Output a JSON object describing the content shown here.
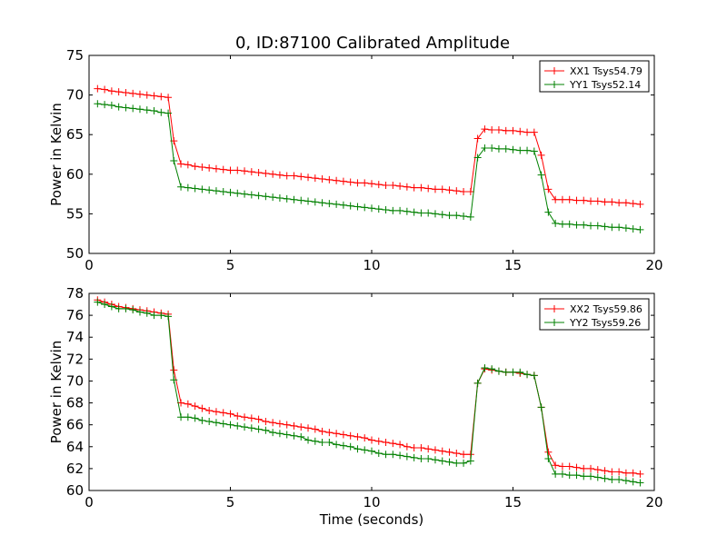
{
  "figure_title": "0, ID:87100 Calibrated Amplitude",
  "chart_data": [
    {
      "type": "line",
      "title": "0, ID:87100 Calibrated Amplitude",
      "xlabel": "",
      "ylabel": "Power in Kelvin",
      "xlim": [
        0,
        20
      ],
      "ylim": [
        50,
        75
      ],
      "xticks": [
        0,
        5,
        10,
        15,
        20
      ],
      "yticks": [
        50,
        55,
        60,
        65,
        70,
        75
      ],
      "grid": false,
      "legend_position": "top-right",
      "series": [
        {
          "name": "XX1 Tsys54.79",
          "color": "#ff0000",
          "x": [
            0.3,
            0.55,
            0.8,
            1.05,
            1.3,
            1.55,
            1.8,
            2.05,
            2.3,
            2.55,
            2.8,
            3.0,
            3.25,
            3.5,
            3.75,
            4.0,
            4.25,
            4.5,
            4.75,
            5.0,
            5.25,
            5.5,
            5.75,
            6.0,
            6.25,
            6.5,
            6.75,
            7.0,
            7.25,
            7.5,
            7.75,
            8.0,
            8.25,
            8.5,
            8.75,
            9.0,
            9.25,
            9.5,
            9.75,
            10.0,
            10.25,
            10.5,
            10.75,
            11.0,
            11.25,
            11.5,
            11.75,
            12.0,
            12.25,
            12.5,
            12.75,
            13.0,
            13.25,
            13.5,
            13.75,
            14.0,
            14.25,
            14.5,
            14.75,
            15.0,
            15.25,
            15.5,
            15.75,
            16.0,
            16.25,
            16.5,
            16.75,
            17.0,
            17.25,
            17.5,
            17.75,
            18.0,
            18.25,
            18.5,
            18.75,
            19.0,
            19.25,
            19.5
          ],
          "y": [
            70.8,
            70.7,
            70.5,
            70.4,
            70.3,
            70.2,
            70.1,
            70.0,
            69.9,
            69.8,
            69.7,
            64.2,
            61.3,
            61.2,
            61.0,
            60.9,
            60.8,
            60.7,
            60.6,
            60.5,
            60.5,
            60.4,
            60.3,
            60.2,
            60.1,
            60.0,
            59.9,
            59.8,
            59.8,
            59.7,
            59.6,
            59.5,
            59.4,
            59.3,
            59.2,
            59.1,
            59.0,
            58.9,
            58.9,
            58.8,
            58.7,
            58.6,
            58.6,
            58.5,
            58.4,
            58.3,
            58.3,
            58.2,
            58.1,
            58.1,
            58.0,
            57.9,
            57.8,
            57.8,
            64.5,
            65.7,
            65.6,
            65.6,
            65.5,
            65.5,
            65.4,
            65.3,
            65.3,
            62.4,
            58.1,
            56.8,
            56.8,
            56.8,
            56.7,
            56.7,
            56.6,
            56.6,
            56.5,
            56.5,
            56.4,
            56.4,
            56.3,
            56.2
          ],
          "x2": [
            19.5
          ],
          "note": ""
        },
        {
          "name": "YY1 Tsys52.14",
          "color": "#008000",
          "x": [
            0.3,
            0.55,
            0.8,
            1.05,
            1.3,
            1.55,
            1.8,
            2.05,
            2.3,
            2.55,
            2.8,
            3.0,
            3.25,
            3.5,
            3.75,
            4.0,
            4.25,
            4.5,
            4.75,
            5.0,
            5.25,
            5.5,
            5.75,
            6.0,
            6.25,
            6.5,
            6.75,
            7.0,
            7.25,
            7.5,
            7.75,
            8.0,
            8.25,
            8.5,
            8.75,
            9.0,
            9.25,
            9.5,
            9.75,
            10.0,
            10.25,
            10.5,
            10.75,
            11.0,
            11.25,
            11.5,
            11.75,
            12.0,
            12.25,
            12.5,
            12.75,
            13.0,
            13.25,
            13.5,
            13.75,
            14.0,
            14.25,
            14.5,
            14.75,
            15.0,
            15.25,
            15.5,
            15.75,
            16.0,
            16.25,
            16.5,
            16.75,
            17.0,
            17.25,
            17.5,
            17.75,
            18.0,
            18.25,
            18.5,
            18.75,
            19.0,
            19.25,
            19.5
          ],
          "y": [
            68.9,
            68.8,
            68.7,
            68.5,
            68.4,
            68.3,
            68.2,
            68.1,
            68.0,
            67.8,
            67.7,
            61.7,
            58.4,
            58.3,
            58.2,
            58.1,
            58.0,
            57.9,
            57.8,
            57.7,
            57.6,
            57.5,
            57.4,
            57.3,
            57.2,
            57.1,
            57.0,
            56.9,
            56.8,
            56.7,
            56.6,
            56.5,
            56.4,
            56.3,
            56.2,
            56.1,
            56.0,
            55.9,
            55.8,
            55.7,
            55.6,
            55.5,
            55.4,
            55.4,
            55.3,
            55.2,
            55.1,
            55.1,
            55.0,
            54.9,
            54.8,
            54.8,
            54.7,
            54.6,
            62.1,
            63.3,
            63.3,
            63.2,
            63.2,
            63.1,
            63.0,
            63.0,
            62.9,
            59.9,
            55.2,
            53.8,
            53.7,
            53.7,
            53.6,
            53.6,
            53.5,
            53.5,
            53.4,
            53.3,
            53.3,
            53.2,
            53.1,
            53.0
          ]
        }
      ]
    },
    {
      "type": "line",
      "title": "",
      "xlabel": "Time (seconds)",
      "ylabel": "Power in Kelvin",
      "xlim": [
        0,
        20
      ],
      "ylim": [
        60,
        78
      ],
      "xticks": [
        0,
        5,
        10,
        15,
        20
      ],
      "yticks": [
        60,
        62,
        64,
        66,
        68,
        70,
        72,
        74,
        76,
        78
      ],
      "grid": false,
      "legend_position": "top-right",
      "series": [
        {
          "name": "XX2 Tsys59.86",
          "color": "#ff0000",
          "x": [
            0.3,
            0.55,
            0.8,
            1.05,
            1.3,
            1.55,
            1.8,
            2.05,
            2.3,
            2.55,
            2.8,
            3.0,
            3.25,
            3.5,
            3.75,
            4.0,
            4.25,
            4.5,
            4.75,
            5.0,
            5.25,
            5.5,
            5.75,
            6.0,
            6.25,
            6.5,
            6.75,
            7.0,
            7.25,
            7.5,
            7.75,
            8.0,
            8.25,
            8.5,
            8.75,
            9.0,
            9.25,
            9.5,
            9.75,
            10.0,
            10.25,
            10.5,
            10.75,
            11.0,
            11.25,
            11.5,
            11.75,
            12.0,
            12.25,
            12.5,
            12.75,
            13.0,
            13.25,
            13.5,
            13.75,
            14.0,
            14.25,
            14.5,
            14.75,
            15.0,
            15.25,
            15.5,
            15.75,
            16.0,
            16.25,
            16.5,
            16.75,
            17.0,
            17.25,
            17.5,
            17.75,
            18.0,
            18.25,
            18.5,
            18.75,
            19.0,
            19.25,
            19.5
          ],
          "y": [
            77.4,
            77.2,
            77.0,
            76.8,
            76.7,
            76.6,
            76.5,
            76.4,
            76.3,
            76.2,
            76.1,
            71.0,
            68.0,
            67.9,
            67.7,
            67.5,
            67.3,
            67.2,
            67.1,
            67.0,
            66.8,
            66.7,
            66.6,
            66.5,
            66.3,
            66.2,
            66.1,
            66.0,
            65.9,
            65.8,
            65.7,
            65.6,
            65.4,
            65.3,
            65.2,
            65.1,
            65.0,
            64.9,
            64.8,
            64.6,
            64.5,
            64.4,
            64.3,
            64.2,
            64.0,
            63.9,
            63.9,
            63.8,
            63.7,
            63.6,
            63.5,
            63.4,
            63.3,
            63.3,
            69.8,
            71.1,
            71.0,
            70.9,
            70.8,
            70.8,
            70.7,
            70.6,
            70.5,
            67.6,
            63.5,
            62.3,
            62.2,
            62.2,
            62.1,
            62.0,
            62.0,
            61.9,
            61.8,
            61.7,
            61.7,
            61.6,
            61.6,
            61.5
          ]
        },
        {
          "name": "YY2 Tsys59.26",
          "color": "#008000",
          "x": [
            0.3,
            0.55,
            0.8,
            1.05,
            1.3,
            1.55,
            1.8,
            2.05,
            2.3,
            2.55,
            2.8,
            3.0,
            3.25,
            3.5,
            3.75,
            4.0,
            4.25,
            4.5,
            4.75,
            5.0,
            5.25,
            5.5,
            5.75,
            6.0,
            6.25,
            6.5,
            6.75,
            7.0,
            7.25,
            7.5,
            7.75,
            8.0,
            8.25,
            8.5,
            8.75,
            9.0,
            9.25,
            9.5,
            9.75,
            10.0,
            10.25,
            10.5,
            10.75,
            11.0,
            11.25,
            11.5,
            11.75,
            12.0,
            12.25,
            12.5,
            12.75,
            13.0,
            13.25,
            13.5,
            13.75,
            14.0,
            14.25,
            14.5,
            14.75,
            15.0,
            15.25,
            15.5,
            15.75,
            16.0,
            16.25,
            16.5,
            16.75,
            17.0,
            17.25,
            17.5,
            17.75,
            18.0,
            18.25,
            18.5,
            18.75,
            19.0,
            19.25,
            19.5
          ],
          "y": [
            77.2,
            77.0,
            76.8,
            76.6,
            76.6,
            76.5,
            76.3,
            76.2,
            76.0,
            76.0,
            75.9,
            70.1,
            66.7,
            66.7,
            66.6,
            66.4,
            66.3,
            66.2,
            66.1,
            66.0,
            65.9,
            65.8,
            65.7,
            65.6,
            65.5,
            65.3,
            65.2,
            65.1,
            65.0,
            64.9,
            64.6,
            64.5,
            64.4,
            64.4,
            64.2,
            64.1,
            64.0,
            63.8,
            63.7,
            63.6,
            63.4,
            63.3,
            63.3,
            63.2,
            63.1,
            63.0,
            62.9,
            62.9,
            62.8,
            62.7,
            62.6,
            62.5,
            62.5,
            62.7,
            69.8,
            71.2,
            71.1,
            70.9,
            70.8,
            70.8,
            70.8,
            70.6,
            70.5,
            67.6,
            62.9,
            61.5,
            61.5,
            61.4,
            61.4,
            61.3,
            61.3,
            61.2,
            61.1,
            61.0,
            61.0,
            60.9,
            60.8,
            60.7
          ]
        }
      ]
    }
  ]
}
